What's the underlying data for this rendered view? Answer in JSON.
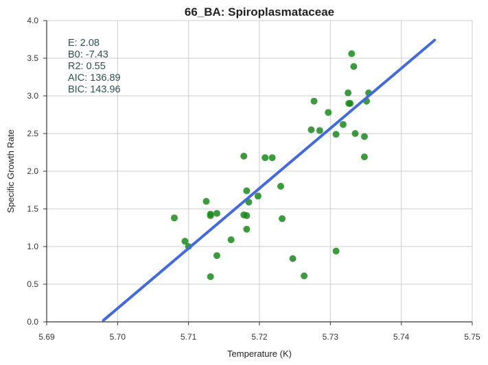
{
  "chart_data": {
    "type": "scatter",
    "title": "66_BA: Spiroplasmataceae",
    "xlabel": "Temperature (K)",
    "ylabel": "Specific Growth Rate",
    "xlim": [
      5.69,
      5.75
    ],
    "ylim": [
      0.0,
      4.0
    ],
    "x_ticks": [
      "5.69",
      "5.70",
      "5.71",
      "5.72",
      "5.73",
      "5.74",
      "5.75"
    ],
    "y_ticks": [
      "0.0",
      "0.5",
      "1.0",
      "1.5",
      "2.0",
      "2.5",
      "3.0",
      "3.5",
      "4.0"
    ],
    "grid": true,
    "annotations": [
      "E:  2.08",
      "B0:  -7.43",
      "R2:  0.55",
      "AIC: 136.89",
      "BIC: 143.96"
    ],
    "colors": {
      "points": "#1a8a1a",
      "fit_line": "#4169e1"
    },
    "series": [
      {
        "type": "scatter",
        "points": [
          [
            5.708,
            1.38
          ],
          [
            5.7095,
            1.07
          ],
          [
            5.71,
            1.0
          ],
          [
            5.7125,
            1.6
          ],
          [
            5.7131,
            1.41
          ],
          [
            5.7131,
            1.43
          ],
          [
            5.7131,
            0.6
          ],
          [
            5.714,
            1.44
          ],
          [
            5.714,
            0.88
          ],
          [
            5.716,
            1.09
          ],
          [
            5.7178,
            2.2
          ],
          [
            5.7178,
            1.42
          ],
          [
            5.7182,
            1.74
          ],
          [
            5.7182,
            1.41
          ],
          [
            5.7182,
            1.23
          ],
          [
            5.7185,
            1.59
          ],
          [
            5.7198,
            1.67
          ],
          [
            5.7208,
            2.18
          ],
          [
            5.7218,
            2.18
          ],
          [
            5.723,
            1.8
          ],
          [
            5.7232,
            1.37
          ],
          [
            5.7247,
            0.84
          ],
          [
            5.7263,
            0.61
          ],
          [
            5.7273,
            2.55
          ],
          [
            5.7277,
            2.93
          ],
          [
            5.7285,
            2.54
          ],
          [
            5.7297,
            2.78
          ],
          [
            5.7308,
            2.49
          ],
          [
            5.7308,
            0.94
          ],
          [
            5.7318,
            2.62
          ],
          [
            5.7325,
            3.04
          ],
          [
            5.7326,
            2.9
          ],
          [
            5.7328,
            2.9
          ],
          [
            5.733,
            3.56
          ],
          [
            5.7333,
            3.39
          ],
          [
            5.7335,
            2.5
          ],
          [
            5.7348,
            2.46
          ],
          [
            5.7348,
            2.19
          ],
          [
            5.7351,
            2.93
          ],
          [
            5.7354,
            3.04
          ]
        ]
      },
      {
        "type": "line",
        "points": [
          [
            5.698,
            0.02
          ],
          [
            5.7447,
            3.74
          ]
        ]
      }
    ]
  }
}
